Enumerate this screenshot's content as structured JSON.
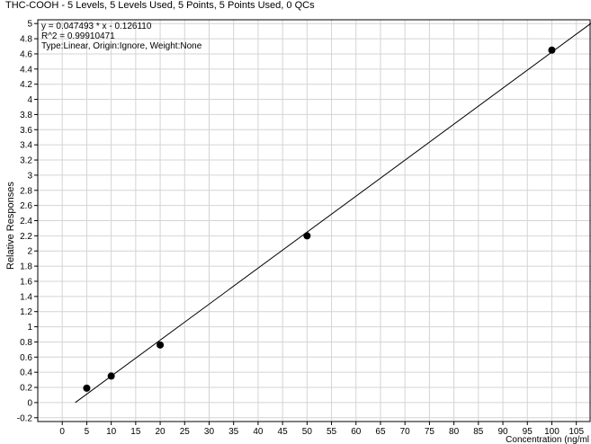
{
  "chart_data": {
    "type": "scatter",
    "title": "THC-COOH - 5 Levels, 5 Levels Used, 5 Points, 5 Points Used, 0 QCs",
    "xlabel": "Concentration (ng/ml",
    "ylabel": "Relative Responses",
    "xlim": [
      -5,
      108
    ],
    "ylim": [
      -0.25,
      5.05
    ],
    "grid": true,
    "x_ticks": [
      "0",
      "5",
      "10",
      "15",
      "20",
      "25",
      "30",
      "35",
      "40",
      "45",
      "50",
      "55",
      "60",
      "65",
      "70",
      "75",
      "80",
      "85",
      "90",
      "95",
      "100",
      "105"
    ],
    "y_ticks": [
      "-0.2",
      "0",
      "0.2",
      "0.4",
      "0.6",
      "0.8",
      "1",
      "1.2",
      "1.4",
      "1.6",
      "1.8",
      "2",
      "2.2",
      "2.4",
      "2.6",
      "2.8",
      "3",
      "3.2",
      "3.4",
      "3.6",
      "3.8",
      "4",
      "4.2",
      "4.4",
      "4.6",
      "4.8",
      "5"
    ],
    "annotations": [
      "y = 0.047493 * x  - 0.126110",
      "R^2 = 0.99910471",
      "Type:Linear, Origin:Ignore, Weight:None"
    ],
    "series": [
      {
        "points": [
          {
            "x": 5,
            "y": 0.19
          },
          {
            "x": 10,
            "y": 0.35
          },
          {
            "x": 20,
            "y": 0.76
          },
          {
            "x": 50,
            "y": 2.2
          },
          {
            "x": 100,
            "y": 4.65
          }
        ]
      }
    ],
    "fit": {
      "slope": 0.047493,
      "intercept": -0.12611,
      "x_range": [
        2.65,
        108
      ]
    }
  }
}
